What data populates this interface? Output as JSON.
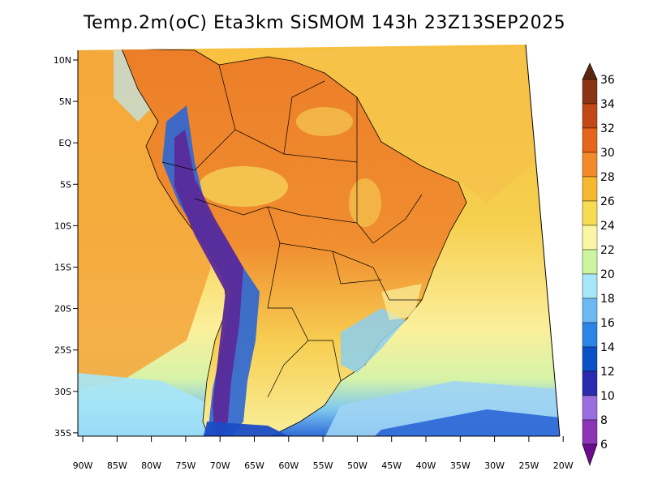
{
  "title": "Temp.2m(oC) Eta3km SiSMOM 143h 23Z13SEP2025",
  "map": {
    "lat_labels": [
      "10N",
      "5N",
      "EQ",
      "5S",
      "10S",
      "15S",
      "20S",
      "25S",
      "30S",
      "35S"
    ],
    "lon_labels": [
      "90W",
      "85W",
      "80W",
      "75W",
      "70W",
      "65W",
      "60W",
      "55W",
      "50W",
      "45W",
      "40W",
      "35W",
      "30W",
      "25W",
      "20W"
    ]
  },
  "colorbar": {
    "labels": [
      "6",
      "8",
      "10",
      "12",
      "14",
      "16",
      "18",
      "20",
      "22",
      "24",
      "26",
      "28",
      "30",
      "32",
      "34",
      "36"
    ],
    "colors": [
      "#6a0c8e",
      "#8c34b8",
      "#9b6ee0",
      "#2a2ab0",
      "#0c50c8",
      "#2a86e6",
      "#6cb8f2",
      "#a6e6f8",
      "#cdf59e",
      "#f9f7a6",
      "#f5dc52",
      "#f5b82e",
      "#f28a2a",
      "#e5651c",
      "#c24818",
      "#8a3414",
      "#5a2810"
    ]
  },
  "colors": {
    "ocean_warm": "#f5a53a",
    "ocean_mid": "#f6d85a",
    "ocean_cool": "#fbf2a2",
    "land_hot": "#ee8a2c",
    "andes": "#5a2a9a",
    "cold_south": "#1a4cc6"
  }
}
